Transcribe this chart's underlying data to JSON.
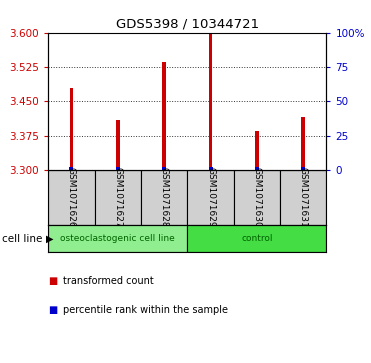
{
  "title": "GDS5398 / 10344721",
  "samples": [
    "GSM1071626",
    "GSM1071627",
    "GSM1071628",
    "GSM1071629",
    "GSM1071630",
    "GSM1071631"
  ],
  "transformed_counts": [
    3.48,
    3.41,
    3.535,
    3.6,
    3.385,
    3.415
  ],
  "percentile_ranks": [
    1,
    1,
    1,
    1,
    1,
    1
  ],
  "ylim_left": [
    3.3,
    3.6
  ],
  "yticks_left": [
    3.3,
    3.375,
    3.45,
    3.525,
    3.6
  ],
  "ylim_right": [
    0,
    100
  ],
  "yticks_right": [
    0,
    25,
    50,
    75,
    100
  ],
  "ytick_labels_right": [
    "0",
    "25",
    "50",
    "75",
    "100%"
  ],
  "bar_color": "#cc0000",
  "percentile_color": "#0000cc",
  "left_tick_color": "#cc0000",
  "right_tick_color": "#0000cc",
  "groups": [
    {
      "label": "osteoclastogenic cell line",
      "start": 0,
      "end": 3,
      "color": "#90ee90"
    },
    {
      "label": "control",
      "start": 3,
      "end": 6,
      "color": "#44dd44"
    }
  ],
  "cell_line_label": "cell line",
  "legend": [
    {
      "label": "transformed count",
      "color": "#cc0000"
    },
    {
      "label": "percentile rank within the sample",
      "color": "#0000cc"
    }
  ],
  "bar_width": 0.08,
  "base_value": 3.3
}
